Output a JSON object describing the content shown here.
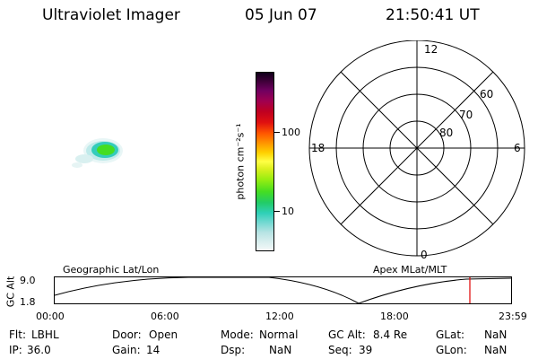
{
  "header": {
    "title": "Ultraviolet Imager",
    "date": "05 Jun 07",
    "time": "21:50:41 UT"
  },
  "colorbar": {
    "unit_label": "photon cm⁻²s⁻¹",
    "tick_labels": [
      "100",
      "10"
    ]
  },
  "polar": {
    "mlt_labels": {
      "top": "12",
      "left": "18",
      "right": "6",
      "bottom": "0"
    },
    "lat_labels": [
      "60",
      "70",
      "80"
    ]
  },
  "timeline": {
    "left_caption": "Geographic Lat/Lon",
    "right_caption": "Apex MLat/MLT",
    "axis_title": "GC Alt",
    "y_labels": [
      "9.0",
      "1.8"
    ],
    "time_labels": [
      "00:00",
      "06:00",
      "12:00",
      "18:00",
      "23:59"
    ],
    "current_marker_time": "21:50"
  },
  "info": {
    "row1": [
      {
        "label": "Flt:",
        "value": "LBHL"
      },
      {
        "label": "Door:",
        "value": "Open"
      },
      {
        "label": "Mode:",
        "value": "Normal"
      },
      {
        "label": "GC Alt:",
        "value": "8.4 Re"
      },
      {
        "label": "GLat:",
        "value": "NaN"
      }
    ],
    "row2": [
      {
        "label": "IP:",
        "value": "36.0"
      },
      {
        "label": "Gain:",
        "value": "14"
      },
      {
        "label": "Dsp:",
        "value": "NaN"
      },
      {
        "label": "Seq:",
        "value": "39"
      },
      {
        "label": "GLon:",
        "value": "NaN"
      }
    ]
  },
  "colors": {
    "marker": "#e00000",
    "auroral_core": "#44dd22",
    "auroral_edge": "#33ccbb"
  }
}
